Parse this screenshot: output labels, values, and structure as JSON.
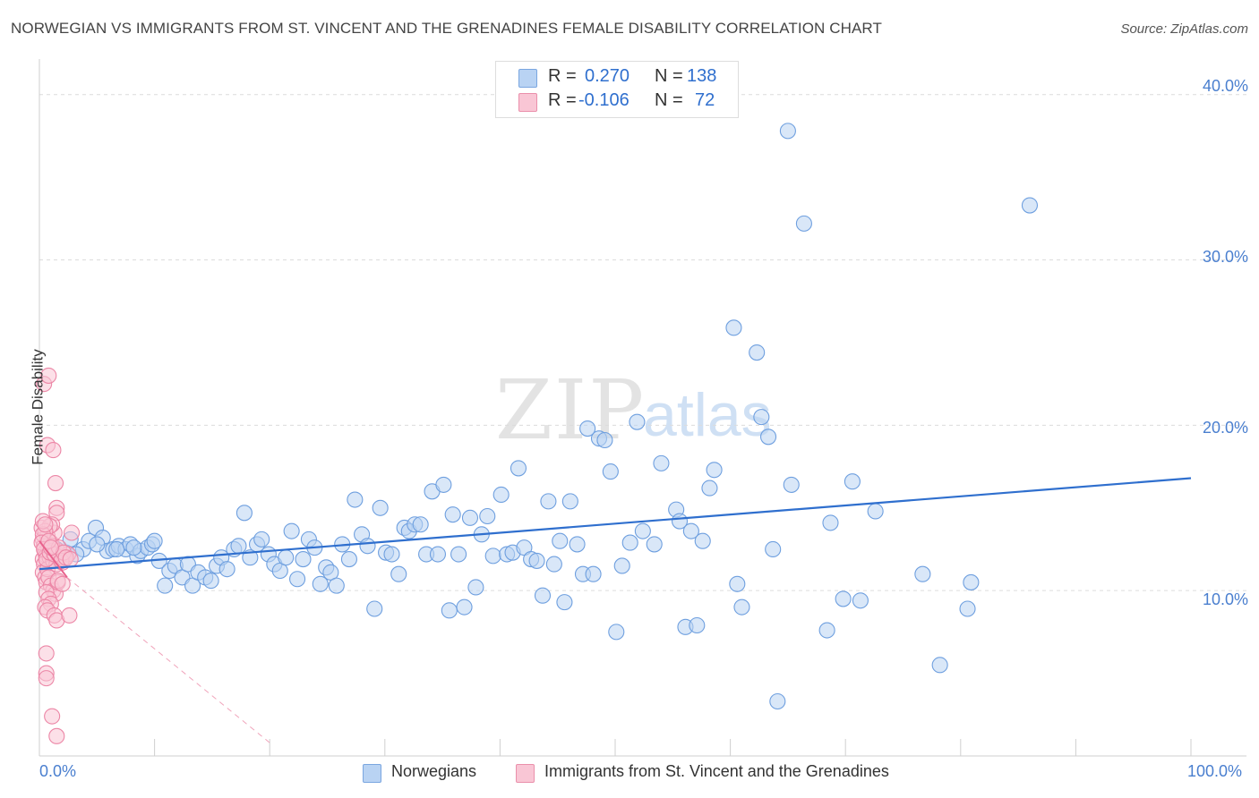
{
  "title": "NORWEGIAN VS IMMIGRANTS FROM ST. VINCENT AND THE GRENADINES FEMALE DISABILITY CORRELATION CHART",
  "source": "Source: ZipAtlas.com",
  "watermark": {
    "zip": "ZIP",
    "atlas": "atlas"
  },
  "stats": {
    "blue": {
      "r_label": "R =",
      "r_value": "0.270",
      "n_label": "N =",
      "n_value": "138"
    },
    "pink": {
      "r_label": "R =",
      "r_value": "-0.106",
      "n_label": "N =",
      "n_value": "72"
    }
  },
  "colors": {
    "blue": "#2f6fce",
    "blue_fill": "#b9d3f3",
    "pink": "#e8628d",
    "pink_fill": "#f9c6d5"
  },
  "chart_data": {
    "type": "scatter",
    "title": "NORWEGIAN VS IMMIGRANTS FROM ST. VINCENT AND THE GRENADINES FEMALE DISABILITY CORRELATION CHART",
    "xlabel": "",
    "ylabel": "Female Disability",
    "xlim": [
      0,
      100
    ],
    "ylim": [
      0,
      41.5
    ],
    "x_tick_labels": [
      "0.0%",
      "100.0%"
    ],
    "y_ticks": [
      10,
      20,
      30,
      40
    ],
    "y_tick_labels": [
      "10.0%",
      "20.0%",
      "30.0%",
      "40.0%"
    ],
    "grid": true,
    "legend_position": "bottom",
    "series": [
      {
        "name": "Norwegians",
        "color": "#2f6fce",
        "trend": {
          "x": [
            0,
            100
          ],
          "y": [
            11.3,
            16.8
          ]
        },
        "points": [
          [
            1.2,
            12.0
          ],
          [
            2.3,
            12.3
          ],
          [
            2.7,
            13.1
          ],
          [
            3.8,
            12.5
          ],
          [
            4.3,
            13.0
          ],
          [
            4.9,
            13.8
          ],
          [
            5.5,
            13.2
          ],
          [
            5.9,
            12.4
          ],
          [
            6.4,
            12.5
          ],
          [
            6.9,
            12.7
          ],
          [
            7.5,
            12.5
          ],
          [
            7.9,
            12.8
          ],
          [
            8.5,
            12.1
          ],
          [
            8.8,
            12.4
          ],
          [
            9.4,
            12.6
          ],
          [
            9.8,
            12.8
          ],
          [
            10.4,
            11.8
          ],
          [
            10.9,
            10.3
          ],
          [
            11.3,
            11.2
          ],
          [
            11.8,
            11.5
          ],
          [
            12.4,
            10.8
          ],
          [
            12.9,
            11.6
          ],
          [
            13.3,
            10.3
          ],
          [
            13.8,
            11.1
          ],
          [
            14.4,
            10.8
          ],
          [
            14.9,
            10.6
          ],
          [
            15.4,
            11.5
          ],
          [
            15.8,
            12.0
          ],
          [
            16.3,
            11.3
          ],
          [
            16.9,
            12.5
          ],
          [
            17.3,
            12.7
          ],
          [
            17.8,
            14.7
          ],
          [
            18.3,
            12.0
          ],
          [
            18.9,
            12.8
          ],
          [
            19.3,
            13.1
          ],
          [
            19.9,
            12.2
          ],
          [
            20.4,
            11.6
          ],
          [
            20.9,
            11.2
          ],
          [
            21.4,
            12.0
          ],
          [
            21.9,
            13.6
          ],
          [
            22.4,
            10.7
          ],
          [
            22.9,
            11.9
          ],
          [
            23.4,
            13.1
          ],
          [
            23.9,
            12.6
          ],
          [
            24.4,
            10.4
          ],
          [
            24.9,
            11.4
          ],
          [
            25.3,
            11.1
          ],
          [
            25.8,
            10.3
          ],
          [
            26.3,
            12.8
          ],
          [
            26.9,
            11.9
          ],
          [
            27.4,
            15.5
          ],
          [
            28.0,
            13.4
          ],
          [
            28.5,
            12.7
          ],
          [
            29.1,
            8.9
          ],
          [
            29.6,
            15.0
          ],
          [
            30.1,
            12.3
          ],
          [
            30.6,
            12.2
          ],
          [
            31.2,
            11.0
          ],
          [
            31.7,
            13.8
          ],
          [
            32.1,
            13.6
          ],
          [
            32.6,
            14.0
          ],
          [
            33.1,
            14.0
          ],
          [
            33.6,
            12.2
          ],
          [
            34.1,
            16.0
          ],
          [
            34.6,
            12.2
          ],
          [
            35.1,
            16.4
          ],
          [
            35.6,
            8.8
          ],
          [
            35.9,
            14.6
          ],
          [
            36.4,
            12.2
          ],
          [
            36.9,
            9.0
          ],
          [
            37.4,
            14.4
          ],
          [
            37.9,
            10.2
          ],
          [
            38.4,
            13.4
          ],
          [
            38.9,
            14.5
          ],
          [
            39.4,
            12.1
          ],
          [
            40.1,
            15.8
          ],
          [
            40.6,
            12.2
          ],
          [
            41.1,
            12.3
          ],
          [
            41.6,
            17.4
          ],
          [
            42.1,
            12.6
          ],
          [
            42.7,
            11.9
          ],
          [
            43.2,
            11.8
          ],
          [
            43.7,
            9.7
          ],
          [
            44.2,
            15.4
          ],
          [
            44.7,
            11.6
          ],
          [
            45.2,
            13.0
          ],
          [
            45.6,
            9.3
          ],
          [
            46.1,
            15.4
          ],
          [
            46.7,
            12.8
          ],
          [
            47.2,
            11.0
          ],
          [
            47.6,
            19.8
          ],
          [
            48.1,
            11.0
          ],
          [
            48.6,
            19.2
          ],
          [
            49.1,
            19.1
          ],
          [
            49.6,
            17.2
          ],
          [
            50.1,
            7.5
          ],
          [
            50.6,
            11.5
          ],
          [
            51.3,
            12.9
          ],
          [
            51.9,
            20.2
          ],
          [
            52.4,
            13.6
          ],
          [
            53.4,
            12.8
          ],
          [
            54.0,
            17.7
          ],
          [
            55.3,
            14.9
          ],
          [
            55.6,
            14.2
          ],
          [
            56.1,
            7.8
          ],
          [
            56.6,
            13.6
          ],
          [
            57.1,
            7.9
          ],
          [
            57.6,
            13.0
          ],
          [
            58.2,
            16.2
          ],
          [
            58.6,
            17.3
          ],
          [
            60.3,
            25.9
          ],
          [
            60.6,
            10.4
          ],
          [
            61.0,
            9.0
          ],
          [
            62.3,
            24.4
          ],
          [
            62.7,
            20.5
          ],
          [
            63.3,
            19.3
          ],
          [
            63.7,
            12.5
          ],
          [
            64.1,
            3.3
          ],
          [
            65.0,
            37.8
          ],
          [
            65.3,
            16.4
          ],
          [
            66.4,
            32.2
          ],
          [
            68.4,
            7.6
          ],
          [
            68.7,
            14.1
          ],
          [
            69.8,
            9.5
          ],
          [
            70.6,
            16.6
          ],
          [
            71.3,
            9.4
          ],
          [
            72.6,
            14.8
          ],
          [
            76.7,
            11.0
          ],
          [
            78.2,
            5.5
          ],
          [
            80.6,
            8.9
          ],
          [
            80.9,
            10.5
          ],
          [
            86.0,
            33.3
          ],
          [
            1.5,
            12.5
          ],
          [
            3.2,
            12.2
          ],
          [
            5.0,
            12.8
          ],
          [
            6.7,
            12.5
          ],
          [
            8.2,
            12.6
          ],
          [
            10.0,
            13.0
          ]
        ]
      },
      {
        "name": "Immigrants from St. Vincent and the Grenadines",
        "color": "#e8628d",
        "trend": {
          "x": [
            0,
            2.4
          ],
          "y": [
            13.0,
            10.8
          ]
        },
        "trend_ext": {
          "x": [
            2.4,
            20
          ],
          "y": [
            10.8,
            0.8
          ]
        },
        "points": [
          [
            0.2,
            13.8
          ],
          [
            0.3,
            13.1
          ],
          [
            0.4,
            12.7
          ],
          [
            0.5,
            12.3
          ],
          [
            0.3,
            11.9
          ],
          [
            0.6,
            12.1
          ],
          [
            0.7,
            13.3
          ],
          [
            0.4,
            11.6
          ],
          [
            0.8,
            12.6
          ],
          [
            0.9,
            12.0
          ],
          [
            0.3,
            11.1
          ],
          [
            0.5,
            10.8
          ],
          [
            0.6,
            10.5
          ],
          [
            0.7,
            11.3
          ],
          [
            1.0,
            12.9
          ],
          [
            1.1,
            12.4
          ],
          [
            1.2,
            11.8
          ],
          [
            1.3,
            13.5
          ],
          [
            1.4,
            12.1
          ],
          [
            1.5,
            11.6
          ],
          [
            1.6,
            12.4
          ],
          [
            1.8,
            12.0
          ],
          [
            2.0,
            11.7
          ],
          [
            2.2,
            11.9
          ],
          [
            2.5,
            12.2
          ],
          [
            2.8,
            13.5
          ],
          [
            0.4,
            22.5
          ],
          [
            0.8,
            23.0
          ],
          [
            0.7,
            18.8
          ],
          [
            1.2,
            18.5
          ],
          [
            1.4,
            16.5
          ],
          [
            1.5,
            15.0
          ],
          [
            1.5,
            14.7
          ],
          [
            1.1,
            14.0
          ],
          [
            0.9,
            13.9
          ],
          [
            0.5,
            13.6
          ],
          [
            0.3,
            13.4
          ],
          [
            0.8,
            10.8
          ],
          [
            1.0,
            10.3
          ],
          [
            1.2,
            10.0
          ],
          [
            1.4,
            9.8
          ],
          [
            1.6,
            10.5
          ],
          [
            0.6,
            9.9
          ],
          [
            0.8,
            9.5
          ],
          [
            1.0,
            9.2
          ],
          [
            0.5,
            9.0
          ],
          [
            0.7,
            8.8
          ],
          [
            1.3,
            8.5
          ],
          [
            1.5,
            8.2
          ],
          [
            2.6,
            8.5
          ],
          [
            0.6,
            6.2
          ],
          [
            0.6,
            5.0
          ],
          [
            0.6,
            4.7
          ],
          [
            1.1,
            2.4
          ],
          [
            1.5,
            1.2
          ],
          [
            0.2,
            12.9
          ],
          [
            0.4,
            12.5
          ],
          [
            0.6,
            11.9
          ],
          [
            0.9,
            12.3
          ],
          [
            1.1,
            12.7
          ],
          [
            1.3,
            12.2
          ],
          [
            1.7,
            12.6
          ],
          [
            1.9,
            11.8
          ],
          [
            2.1,
            12.3
          ],
          [
            2.3,
            12.0
          ],
          [
            2.7,
            11.9
          ],
          [
            0.3,
            14.2
          ],
          [
            0.5,
            14.0
          ],
          [
            0.8,
            13.0
          ],
          [
            1.0,
            12.6
          ],
          [
            1.6,
            10.6
          ],
          [
            2.0,
            10.4
          ]
        ]
      }
    ]
  }
}
